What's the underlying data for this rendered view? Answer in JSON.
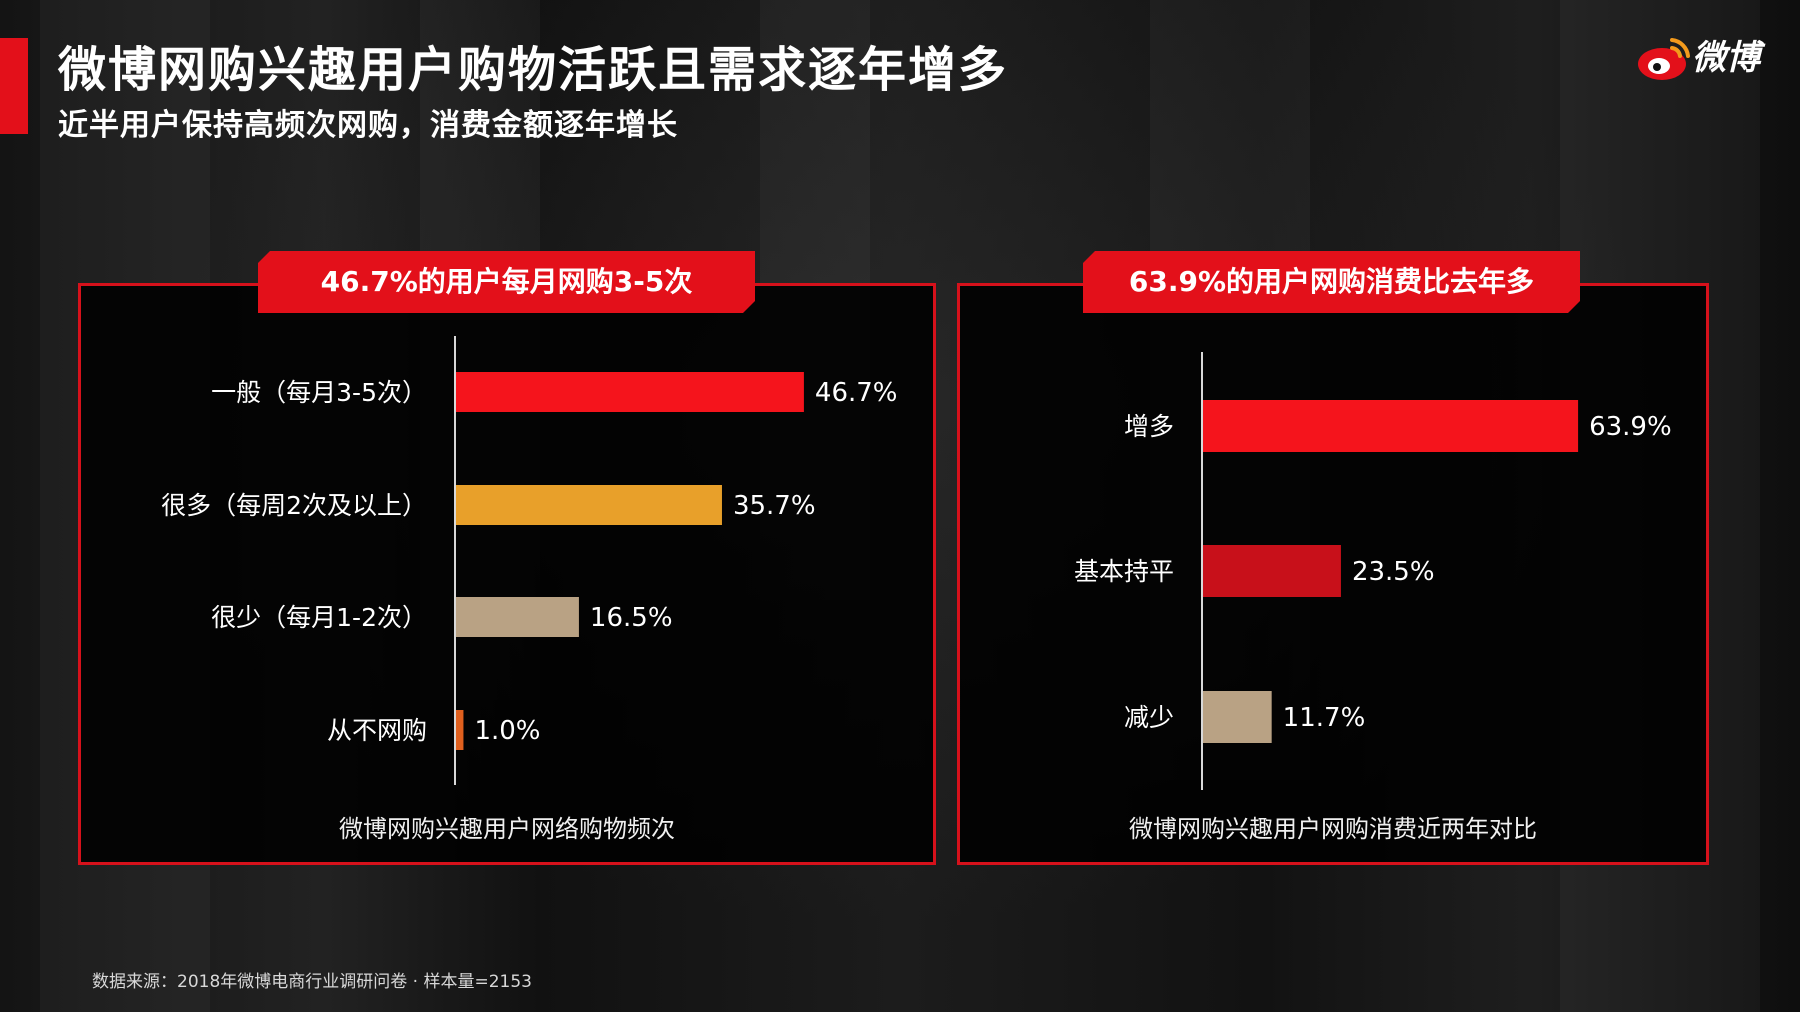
{
  "title": "微博网购兴趣用户购物活跃且需求逐年增多",
  "subtitle": "近半用户保持高频次网购，消费金额逐年增长",
  "logo": {
    "text": "微博",
    "icon": "weibo-logo-icon"
  },
  "source": "数据来源：2018年微博电商行业调研问卷 · 样本量=2153",
  "colors": {
    "accent": "#e3101a"
  },
  "chart_data": [
    {
      "type": "bar",
      "orientation": "horizontal",
      "title": "46.7%的用户每月网购3-5次",
      "caption": "微博网购兴趣用户网络购物频次",
      "categories": [
        "一般（每月3-5次）",
        "很多（每周2次及以上）",
        "很少（每月1-2次）",
        "从不网购"
      ],
      "values": [
        46.7,
        35.7,
        16.5,
        1.0
      ],
      "value_labels": [
        "46.7%",
        "35.7%",
        "16.5%",
        "1.0%"
      ],
      "colors": [
        "#f5141c",
        "#e8a02a",
        "#b9a284",
        "#e0601e"
      ],
      "xlim": [
        0,
        100
      ],
      "grid": false
    },
    {
      "type": "bar",
      "orientation": "horizontal",
      "title": "63.9%的用户网购消费比去年多",
      "caption": "微博网购兴趣用户网购消费近两年对比",
      "categories": [
        "增多",
        "基本持平",
        "减少"
      ],
      "values": [
        63.9,
        23.5,
        11.7
      ],
      "value_labels": [
        "63.9%",
        "23.5%",
        "11.7%"
      ],
      "colors": [
        "#f5141c",
        "#c8101a",
        "#b9a284"
      ],
      "xlim": [
        0,
        100
      ],
      "grid": false
    }
  ]
}
